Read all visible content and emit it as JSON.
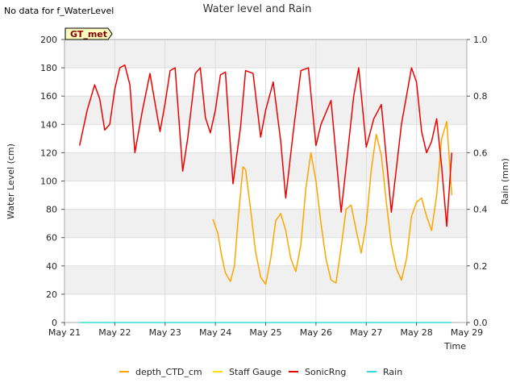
{
  "no_data_note": "No data for f_WaterLevel",
  "badge": "GT_met",
  "chart_data": {
    "type": "line",
    "title": "Water level and Rain",
    "xlabel": "Time",
    "ylabel": "Water Level (cm)",
    "y2label": "Rain (mm)",
    "x_tick_labels": [
      "May 21",
      "May 22",
      "May 23",
      "May 24",
      "May 25",
      "May 26",
      "May 27",
      "May 28",
      "May 29"
    ],
    "xlim": [
      21,
      29
    ],
    "ylim": [
      0,
      200
    ],
    "y_ticks": [
      0,
      20,
      40,
      60,
      80,
      100,
      120,
      140,
      160,
      180,
      200
    ],
    "y2lim": [
      0,
      1.0
    ],
    "y2_ticks": [
      "0.0",
      "0.2",
      "0.4",
      "0.6",
      "0.8",
      "1.0"
    ],
    "grid": true,
    "legend_position": "bottom",
    "colors": {
      "depth_CTD_cm": "#ffa500",
      "Staff Gauge": "#ffe000",
      "SonicRng": "#ee0000",
      "Rain": "#33dddd",
      "band": "#f0f0f0",
      "gridline": "#dddddd",
      "badge_bg": "#ffffc0"
    },
    "series": [
      {
        "name": "depth_CTD_cm",
        "axis": "left",
        "x": [
          23.95,
          24.05,
          24.12,
          24.2,
          24.3,
          24.38,
          24.45,
          24.55,
          24.6,
          24.7,
          24.8,
          24.9,
          25.0,
          25.1,
          25.2,
          25.3,
          25.4,
          25.5,
          25.6,
          25.7,
          25.8,
          25.9,
          26.0,
          26.1,
          26.2,
          26.3,
          26.4,
          26.5,
          26.6,
          26.7,
          26.8,
          26.9,
          27.0,
          27.1,
          27.2,
          27.3,
          27.4,
          27.5,
          27.6,
          27.7,
          27.8,
          27.9,
          28.0,
          28.1,
          28.2,
          28.3,
          28.4,
          28.5,
          28.6,
          28.7
        ],
        "y": [
          73,
          63,
          48,
          35,
          29,
          40,
          72,
          110,
          108,
          80,
          50,
          32,
          27,
          45,
          72,
          77,
          65,
          45,
          36,
          55,
          95,
          120,
          100,
          70,
          45,
          30,
          28,
          53,
          80,
          83,
          65,
          49,
          70,
          108,
          133,
          118,
          85,
          55,
          38,
          30,
          45,
          75,
          85,
          88,
          75,
          65,
          90,
          130,
          142,
          90
        ]
      },
      {
        "name": "Staff Gauge",
        "axis": "left",
        "x": [],
        "y": []
      },
      {
        "name": "SonicRng",
        "axis": "left",
        "x": [
          21.3,
          21.45,
          21.6,
          21.7,
          21.8,
          21.9,
          22.0,
          22.1,
          22.2,
          22.3,
          22.4,
          22.55,
          22.7,
          22.8,
          22.9,
          23.0,
          23.1,
          23.2,
          23.35,
          23.45,
          23.6,
          23.7,
          23.8,
          23.9,
          24.0,
          24.1,
          24.2,
          24.35,
          24.5,
          24.6,
          24.75,
          24.9,
          25.0,
          25.15,
          25.3,
          25.4,
          25.55,
          25.7,
          25.85,
          26.0,
          26.1,
          26.3,
          26.5,
          26.6,
          26.75,
          26.85,
          27.0,
          27.15,
          27.3,
          27.5,
          27.7,
          27.9,
          28.0,
          28.1,
          28.2,
          28.3,
          28.4,
          28.5,
          28.6,
          28.7
        ],
        "y": [
          125,
          150,
          168,
          158,
          136,
          140,
          165,
          180,
          182,
          168,
          120,
          150,
          176,
          155,
          135,
          155,
          178,
          180,
          107,
          130,
          176,
          180,
          145,
          134,
          150,
          175,
          177,
          98,
          138,
          178,
          176,
          131,
          150,
          170,
          128,
          88,
          135,
          178,
          180,
          125,
          140,
          157,
          78,
          110,
          160,
          180,
          124,
          144,
          154,
          78,
          140,
          180,
          170,
          135,
          120,
          128,
          144,
          110,
          68,
          120
        ]
      },
      {
        "name": "Rain",
        "axis": "right",
        "x": [
          21.3,
          28.7
        ],
        "y": [
          0,
          0
        ]
      }
    ]
  }
}
